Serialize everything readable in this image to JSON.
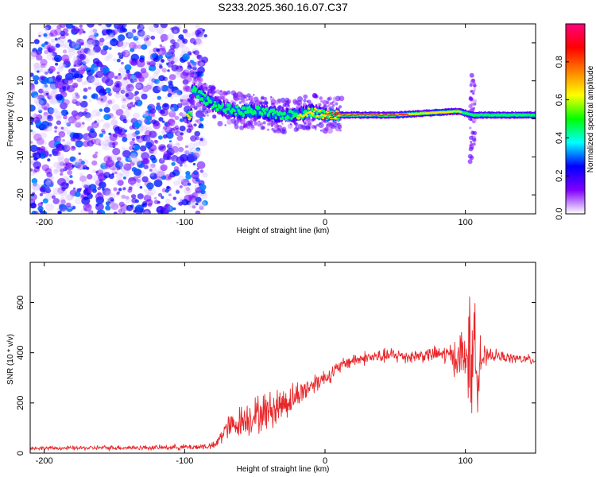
{
  "title": "S233.2025.360.16.07.C37",
  "chart_data": [
    {
      "type": "heatmap",
      "name": "spectrogram",
      "xlabel": "Height of straight line (km)",
      "ylabel": "Frequency (Hz)",
      "xlim": [
        -210,
        150
      ],
      "ylim": [
        -25,
        25
      ],
      "xticks": [
        -200,
        -100,
        0,
        100
      ],
      "yticks": [
        -20,
        -10,
        0,
        10,
        20
      ],
      "colorbar": {
        "label": "Normalized spectral amplitude",
        "range": [
          0,
          1
        ],
        "ticks": [
          0.0,
          0.2,
          0.4,
          0.6,
          0.8
        ],
        "tick_labels": [
          "0.0",
          "0.2",
          "0.4",
          "0.6",
          "0.8"
        ],
        "stops": [
          "#ffffff",
          "#8000ff",
          "#0000ff",
          "#00ffff",
          "#00ff00",
          "#ffff00",
          "#ff8000",
          "#ff0000",
          "#ff0080"
        ]
      },
      "ridge": {
        "description_free": true,
        "noise_region_x": [
          -210,
          -85
        ],
        "track_points": [
          {
            "x": -95,
            "f": 8,
            "a": 0.4
          },
          {
            "x": -85,
            "f": 5,
            "a": 0.5
          },
          {
            "x": -75,
            "f": 3,
            "a": 0.45
          },
          {
            "x": -60,
            "f": 2,
            "a": 0.55
          },
          {
            "x": -45,
            "f": 2,
            "a": 0.5
          },
          {
            "x": -35,
            "f": 1,
            "a": 0.5
          },
          {
            "x": -20,
            "f": 1,
            "a": 0.6
          },
          {
            "x": -10,
            "f": 2,
            "a": 0.6
          },
          {
            "x": 0,
            "f": 1,
            "a": 0.85
          },
          {
            "x": 50,
            "f": 1,
            "a": 0.9
          },
          {
            "x": 95,
            "f": 2,
            "a": 0.65
          },
          {
            "x": 105,
            "f": 1,
            "a": 0.4
          },
          {
            "x": 120,
            "f": 1,
            "a": 0.55
          },
          {
            "x": 150,
            "f": 1,
            "a": 0.6
          }
        ],
        "spur": {
          "x": 105,
          "f_range": [
            -12,
            12
          ]
        }
      }
    },
    {
      "type": "line",
      "name": "snr",
      "xlabel": "Height of straight line (km)",
      "ylabel": "SNR (10 * v/v)",
      "xlim": [
        -210,
        150
      ],
      "ylim": [
        0,
        760
      ],
      "xticks": [
        -200,
        -100,
        0,
        100
      ],
      "yticks": [
        0,
        200,
        400,
        600
      ],
      "color": "#e8272b",
      "series": [
        {
          "name": "SNR",
          "x": [
            -210,
            -180,
            -150,
            -120,
            -90,
            -78,
            -72,
            -65,
            -60,
            -55,
            -50,
            -45,
            -40,
            -35,
            -30,
            -25,
            -20,
            -15,
            -10,
            -5,
            0,
            5,
            10,
            15,
            20,
            30,
            40,
            50,
            60,
            70,
            80,
            90,
            95,
            100,
            103,
            106,
            108,
            110,
            112,
            115,
            120,
            130,
            140,
            150
          ],
          "values": [
            20,
            20,
            22,
            22,
            25,
            30,
            90,
            110,
            130,
            140,
            150,
            160,
            170,
            180,
            200,
            210,
            230,
            250,
            270,
            290,
            300,
            320,
            340,
            360,
            370,
            380,
            385,
            390,
            385,
            390,
            395,
            390,
            380,
            380,
            400,
            350,
            380,
            400,
            380,
            380,
            390,
            380,
            375,
            370
          ],
          "spread": [
            10,
            10,
            12,
            12,
            15,
            18,
            60,
            70,
            80,
            90,
            90,
            100,
            90,
            100,
            90,
            80,
            70,
            60,
            55,
            50,
            45,
            40,
            35,
            35,
            35,
            35,
            35,
            40,
            35,
            35,
            40,
            60,
            120,
            180,
            280,
            300,
            250,
            200,
            90,
            40,
            30,
            25,
            25,
            25
          ]
        }
      ]
    }
  ]
}
